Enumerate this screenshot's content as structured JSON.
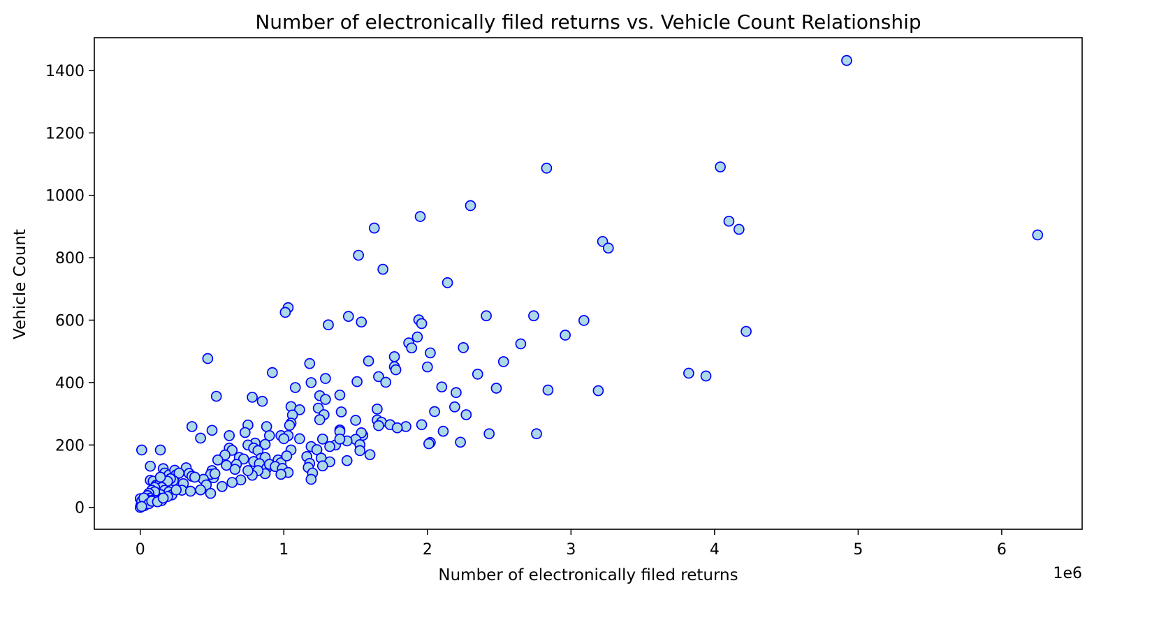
{
  "chart_data": {
    "type": "scatter",
    "title": "Number of electronically filed returns vs. Vehicle Count Relationship",
    "xlabel": "Number of electronically filed returns",
    "ylabel": "Vehicle Count",
    "x_offset_label": "1e6",
    "x_scale": 1000000,
    "xlim": [
      -320000,
      6560000
    ],
    "ylim": [
      -70,
      1505
    ],
    "xticks": [
      0,
      1000000,
      2000000,
      3000000,
      4000000,
      5000000,
      6000000
    ],
    "xtick_labels": [
      "0",
      "1",
      "2",
      "3",
      "4",
      "5",
      "6"
    ],
    "yticks": [
      0,
      200,
      400,
      600,
      800,
      1000,
      1200,
      1400
    ],
    "ytick_labels": [
      "0",
      "200",
      "400",
      "600",
      "800",
      "1000",
      "1200",
      "1400"
    ],
    "grid": false,
    "marker_edge_color": "#0000ff",
    "marker_face_color": "#add8e6",
    "points": [
      [
        4920000,
        1432
      ],
      [
        6250000,
        873
      ],
      [
        2830000,
        1087
      ],
      [
        4040000,
        1091
      ],
      [
        4100000,
        917
      ],
      [
        4170000,
        891
      ],
      [
        2300000,
        967
      ],
      [
        1950000,
        932
      ],
      [
        1630000,
        895
      ],
      [
        1520000,
        808
      ],
      [
        1690000,
        763
      ],
      [
        3220000,
        852
      ],
      [
        3260000,
        831
      ],
      [
        2140000,
        720
      ],
      [
        1030000,
        640
      ],
      [
        1010000,
        625
      ],
      [
        1450000,
        612
      ],
      [
        1540000,
        594
      ],
      [
        1310000,
        585
      ],
      [
        2410000,
        614
      ],
      [
        2740000,
        614
      ],
      [
        3090000,
        599
      ],
      [
        4220000,
        564
      ],
      [
        1940000,
        601
      ],
      [
        1960000,
        589
      ],
      [
        2960000,
        552
      ],
      [
        1930000,
        546
      ],
      [
        1870000,
        527
      ],
      [
        1890000,
        511
      ],
      [
        2250000,
        512
      ],
      [
        2020000,
        495
      ],
      [
        2650000,
        524
      ],
      [
        2530000,
        467
      ],
      [
        1770000,
        483
      ],
      [
        1770000,
        451
      ],
      [
        1780000,
        441
      ],
      [
        1590000,
        469
      ],
      [
        2000000,
        450
      ],
      [
        470000,
        477
      ],
      [
        1180000,
        461
      ],
      [
        920000,
        432
      ],
      [
        2350000,
        427
      ],
      [
        3820000,
        430
      ],
      [
        3940000,
        421
      ],
      [
        1660000,
        419
      ],
      [
        1710000,
        401
      ],
      [
        1510000,
        403
      ],
      [
        1190000,
        400
      ],
      [
        1290000,
        413
      ],
      [
        2100000,
        386
      ],
      [
        2480000,
        382
      ],
      [
        2840000,
        376
      ],
      [
        3190000,
        374
      ],
      [
        1080000,
        384
      ],
      [
        2200000,
        368
      ],
      [
        530000,
        356
      ],
      [
        780000,
        353
      ],
      [
        850000,
        340
      ],
      [
        1250000,
        358
      ],
      [
        1290000,
        346
      ],
      [
        1390000,
        360
      ],
      [
        1050000,
        323
      ],
      [
        1110000,
        313
      ],
      [
        1240000,
        318
      ],
      [
        1650000,
        315
      ],
      [
        2050000,
        307
      ],
      [
        2190000,
        322
      ],
      [
        2270000,
        297
      ],
      [
        1060000,
        296
      ],
      [
        1280000,
        297
      ],
      [
        1400000,
        306
      ],
      [
        1250000,
        281
      ],
      [
        1500000,
        279
      ],
      [
        1650000,
        280
      ],
      [
        1680000,
        273
      ],
      [
        1740000,
        265
      ],
      [
        1850000,
        259
      ],
      [
        1960000,
        265
      ],
      [
        1050000,
        270
      ],
      [
        1040000,
        263
      ],
      [
        360000,
        259
      ],
      [
        500000,
        247
      ],
      [
        750000,
        264
      ],
      [
        880000,
        259
      ],
      [
        1660000,
        262
      ],
      [
        1790000,
        255
      ],
      [
        2110000,
        244
      ],
      [
        2430000,
        236
      ],
      [
        2760000,
        236
      ],
      [
        1390000,
        248
      ],
      [
        1390000,
        243
      ],
      [
        980000,
        230
      ],
      [
        1030000,
        230
      ],
      [
        620000,
        230
      ],
      [
        730000,
        240
      ],
      [
        900000,
        230
      ],
      [
        420000,
        222
      ],
      [
        1000000,
        220
      ],
      [
        1110000,
        220
      ],
      [
        1270000,
        219
      ],
      [
        1550000,
        231
      ],
      [
        1540000,
        239
      ],
      [
        1500000,
        218
      ],
      [
        1440000,
        213
      ],
      [
        1530000,
        201
      ],
      [
        1360000,
        200
      ],
      [
        1390000,
        219
      ],
      [
        2020000,
        208
      ],
      [
        2010000,
        204
      ],
      [
        2230000,
        209
      ],
      [
        800000,
        206
      ],
      [
        870000,
        202
      ],
      [
        750000,
        200
      ],
      [
        620000,
        190
      ],
      [
        640000,
        183
      ],
      [
        790000,
        190
      ],
      [
        820000,
        182
      ],
      [
        1050000,
        184
      ],
      [
        1190000,
        195
      ],
      [
        1230000,
        185
      ],
      [
        1320000,
        195
      ],
      [
        1530000,
        182
      ],
      [
        1600000,
        169
      ],
      [
        10000,
        184
      ],
      [
        140000,
        184
      ],
      [
        590000,
        168
      ],
      [
        690000,
        160
      ],
      [
        720000,
        155
      ],
      [
        840000,
        157
      ],
      [
        870000,
        160
      ],
      [
        960000,
        152
      ],
      [
        980000,
        143
      ],
      [
        1020000,
        165
      ],
      [
        1160000,
        163
      ],
      [
        1260000,
        158
      ],
      [
        1440000,
        150
      ],
      [
        1320000,
        146
      ],
      [
        1180000,
        141
      ],
      [
        1170000,
        128
      ],
      [
        1270000,
        133
      ],
      [
        1200000,
        110
      ],
      [
        1190000,
        90
      ],
      [
        540000,
        152
      ],
      [
        600000,
        135
      ],
      [
        670000,
        138
      ],
      [
        660000,
        122
      ],
      [
        790000,
        147
      ],
      [
        830000,
        140
      ],
      [
        880000,
        125
      ],
      [
        900000,
        138
      ],
      [
        940000,
        131
      ],
      [
        990000,
        125
      ],
      [
        1030000,
        112
      ],
      [
        980000,
        106
      ],
      [
        870000,
        108
      ],
      [
        820000,
        118
      ],
      [
        780000,
        103
      ],
      [
        750000,
        118
      ],
      [
        700000,
        88
      ],
      [
        640000,
        80
      ],
      [
        570000,
        67
      ],
      [
        510000,
        95
      ],
      [
        500000,
        118
      ],
      [
        490000,
        106
      ],
      [
        520000,
        108
      ],
      [
        440000,
        90
      ],
      [
        460000,
        72
      ],
      [
        420000,
        56
      ],
      [
        490000,
        45
      ],
      [
        320000,
        127
      ],
      [
        340000,
        109
      ],
      [
        360000,
        100
      ],
      [
        380000,
        97
      ],
      [
        300000,
        76
      ],
      [
        290000,
        55
      ],
      [
        350000,
        52
      ],
      [
        160000,
        124
      ],
      [
        170000,
        110
      ],
      [
        200000,
        104
      ],
      [
        240000,
        119
      ],
      [
        250000,
        104
      ],
      [
        270000,
        110
      ],
      [
        230000,
        86
      ],
      [
        210000,
        92
      ],
      [
        190000,
        84
      ],
      [
        70000,
        132
      ],
      [
        70000,
        87
      ],
      [
        90000,
        84
      ],
      [
        110000,
        71
      ],
      [
        130000,
        72
      ],
      [
        140000,
        97
      ],
      [
        150000,
        64
      ],
      [
        170000,
        55
      ],
      [
        200000,
        50
      ],
      [
        220000,
        40
      ],
      [
        250000,
        56
      ],
      [
        190000,
        35
      ],
      [
        140000,
        41
      ],
      [
        130000,
        30
      ],
      [
        150000,
        22
      ],
      [
        100000,
        64
      ],
      [
        80000,
        55
      ],
      [
        100000,
        50
      ],
      [
        60000,
        45
      ],
      [
        50000,
        38
      ],
      [
        70000,
        30
      ],
      [
        90000,
        24
      ],
      [
        110000,
        22
      ],
      [
        40000,
        26
      ],
      [
        30000,
        20
      ],
      [
        20000,
        16
      ],
      [
        10000,
        12
      ],
      [
        5000,
        7
      ],
      [
        15000,
        4
      ],
      [
        20000,
        9
      ],
      [
        5000,
        2
      ],
      [
        30000,
        6
      ],
      [
        45000,
        14
      ],
      [
        0,
        28
      ],
      [
        10000,
        20
      ],
      [
        25000,
        30
      ],
      [
        60000,
        12
      ],
      [
        80000,
        20
      ],
      [
        120000,
        18
      ],
      [
        160000,
        30
      ],
      [
        0,
        0
      ],
      [
        10000,
        3
      ]
    ]
  }
}
